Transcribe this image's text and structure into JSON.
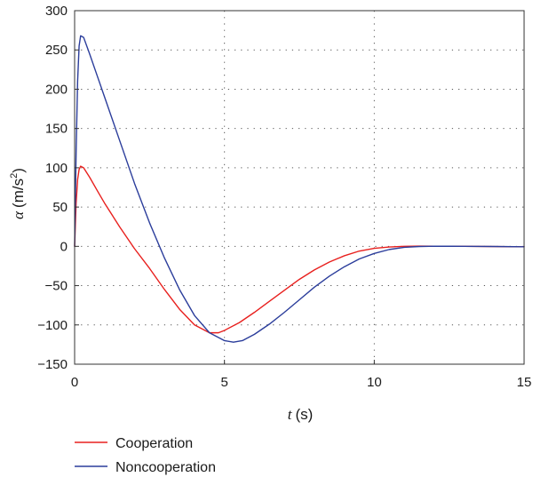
{
  "chart_data": {
    "type": "line",
    "xlabel": {
      "symbol": "t",
      "unit": "(s)"
    },
    "ylabel": {
      "symbol": "α",
      "unit_pre": "(m/s",
      "unit_sup": "2",
      "unit_post": ")"
    },
    "xlim": [
      0,
      15
    ],
    "ylim": [
      -150,
      300
    ],
    "x_ticks": [
      0,
      5,
      10,
      15
    ],
    "x_tick_labels": [
      "0",
      "5",
      "10",
      "15"
    ],
    "y_ticks": [
      300,
      250,
      200,
      150,
      100,
      50,
      0,
      -50,
      -100,
      -150
    ],
    "y_tick_labels": [
      "300",
      "250",
      "200",
      "150",
      "100",
      "50",
      "0",
      "−50",
      "−100",
      "−150"
    ],
    "grid": "dotted",
    "legend_position": "bottom-left",
    "series": [
      {
        "name": "Cooperation",
        "color": "#e8201e",
        "points": [
          [
            0,
            0
          ],
          [
            0.05,
            55
          ],
          [
            0.1,
            85
          ],
          [
            0.15,
            98
          ],
          [
            0.2,
            102
          ],
          [
            0.3,
            100
          ],
          [
            0.5,
            88
          ],
          [
            0.8,
            68
          ],
          [
            1.0,
            55
          ],
          [
            1.5,
            25
          ],
          [
            2.0,
            -3
          ],
          [
            2.5,
            -28
          ],
          [
            3.0,
            -55
          ],
          [
            3.5,
            -80
          ],
          [
            4.0,
            -100
          ],
          [
            4.5,
            -110
          ],
          [
            4.8,
            -110
          ],
          [
            5.0,
            -107
          ],
          [
            5.5,
            -97
          ],
          [
            6.0,
            -84
          ],
          [
            6.5,
            -70
          ],
          [
            7.0,
            -56
          ],
          [
            7.5,
            -42
          ],
          [
            8.0,
            -30
          ],
          [
            8.5,
            -20
          ],
          [
            9.0,
            -12
          ],
          [
            9.5,
            -6
          ],
          [
            10.0,
            -2.5
          ],
          [
            10.5,
            -0.8
          ],
          [
            11.0,
            0
          ],
          [
            11.5,
            0.3
          ],
          [
            12.0,
            0.2
          ],
          [
            13.0,
            0
          ],
          [
            14.0,
            -0.3
          ],
          [
            15.0,
            -0.5
          ]
        ]
      },
      {
        "name": "Noncooperation",
        "color": "#2b3d9b",
        "points": [
          [
            0,
            0
          ],
          [
            0.05,
            120
          ],
          [
            0.1,
            210
          ],
          [
            0.15,
            255
          ],
          [
            0.2,
            268
          ],
          [
            0.3,
            266
          ],
          [
            0.5,
            245
          ],
          [
            0.8,
            212
          ],
          [
            1.0,
            190
          ],
          [
            1.5,
            135
          ],
          [
            2.0,
            80
          ],
          [
            2.5,
            30
          ],
          [
            3.0,
            -15
          ],
          [
            3.5,
            -55
          ],
          [
            4.0,
            -88
          ],
          [
            4.5,
            -110
          ],
          [
            5.0,
            -120
          ],
          [
            5.3,
            -122
          ],
          [
            5.6,
            -120
          ],
          [
            6.0,
            -112
          ],
          [
            6.5,
            -99
          ],
          [
            7.0,
            -84
          ],
          [
            7.5,
            -68
          ],
          [
            8.0,
            -52
          ],
          [
            8.5,
            -38
          ],
          [
            9.0,
            -26
          ],
          [
            9.5,
            -16
          ],
          [
            10.0,
            -9
          ],
          [
            10.5,
            -4
          ],
          [
            11.0,
            -1.2
          ],
          [
            11.5,
            -0.2
          ],
          [
            12.0,
            0.2
          ],
          [
            13.0,
            0
          ],
          [
            14.0,
            -0.2
          ],
          [
            15.0,
            -0.5
          ]
        ]
      }
    ]
  }
}
